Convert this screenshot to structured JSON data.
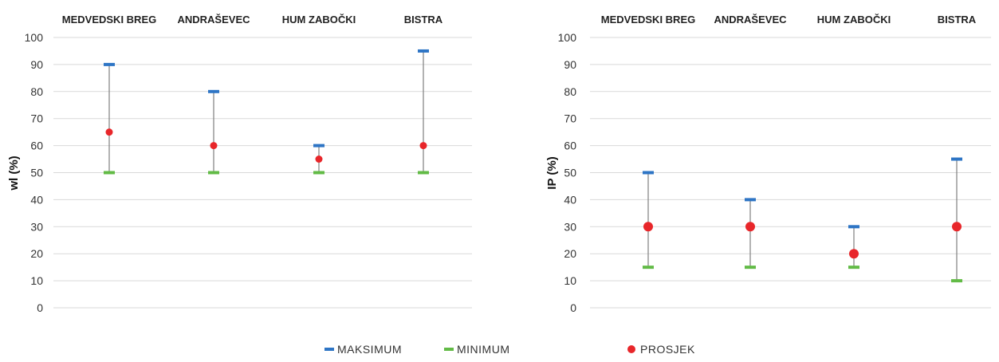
{
  "chart_data": [
    {
      "type": "range",
      "categories": [
        "MEDVEDSKI BREG",
        "ANDRAŠEVEC",
        "HUM ZABOČKI",
        "BISTRA"
      ],
      "ylabel": "wl (%)",
      "ylim": [
        0,
        100
      ],
      "yticks": [
        0,
        10,
        20,
        30,
        40,
        50,
        60,
        70,
        80,
        90,
        100
      ],
      "grid": true,
      "series": [
        {
          "name": "MAKSIMUM",
          "values": [
            90,
            80,
            60,
            95
          ],
          "color": "#2e75c5",
          "marker": "dash"
        },
        {
          "name": "MINIMUM",
          "values": [
            50,
            50,
            50,
            50
          ],
          "color": "#62bb46",
          "marker": "dash"
        },
        {
          "name": "PROSJEK",
          "values": [
            65,
            60,
            55,
            60
          ],
          "color": "#e8262a",
          "marker": "circle"
        }
      ]
    },
    {
      "type": "range",
      "categories": [
        "MEDVEDSKI BREG",
        "ANDRAŠEVEC",
        "HUM ZABOČKI",
        "BISTRA"
      ],
      "ylabel": "IP (%)",
      "ylim": [
        0,
        100
      ],
      "yticks": [
        0,
        10,
        20,
        30,
        40,
        50,
        60,
        70,
        80,
        90,
        100
      ],
      "grid": true,
      "series": [
        {
          "name": "MAKSIMUM",
          "values": [
            50,
            40,
            30,
            55
          ],
          "color": "#2e75c5",
          "marker": "dash"
        },
        {
          "name": "MINIMUM",
          "values": [
            15,
            15,
            15,
            10
          ],
          "color": "#62bb46",
          "marker": "dash"
        },
        {
          "name": "PROSJEK",
          "values": [
            30,
            30,
            20,
            30
          ],
          "color": "#e8262a",
          "marker": "circle"
        }
      ]
    }
  ],
  "legend": {
    "placement": "bottom",
    "items": [
      {
        "label": "MAKSIMUM",
        "color": "#2e75c5",
        "marker": "dash"
      },
      {
        "label": "MINIMUM",
        "color": "#62bb46",
        "marker": "dash"
      },
      {
        "label": "PROSJEK",
        "color": "#e8262a",
        "marker": "circle"
      }
    ]
  }
}
